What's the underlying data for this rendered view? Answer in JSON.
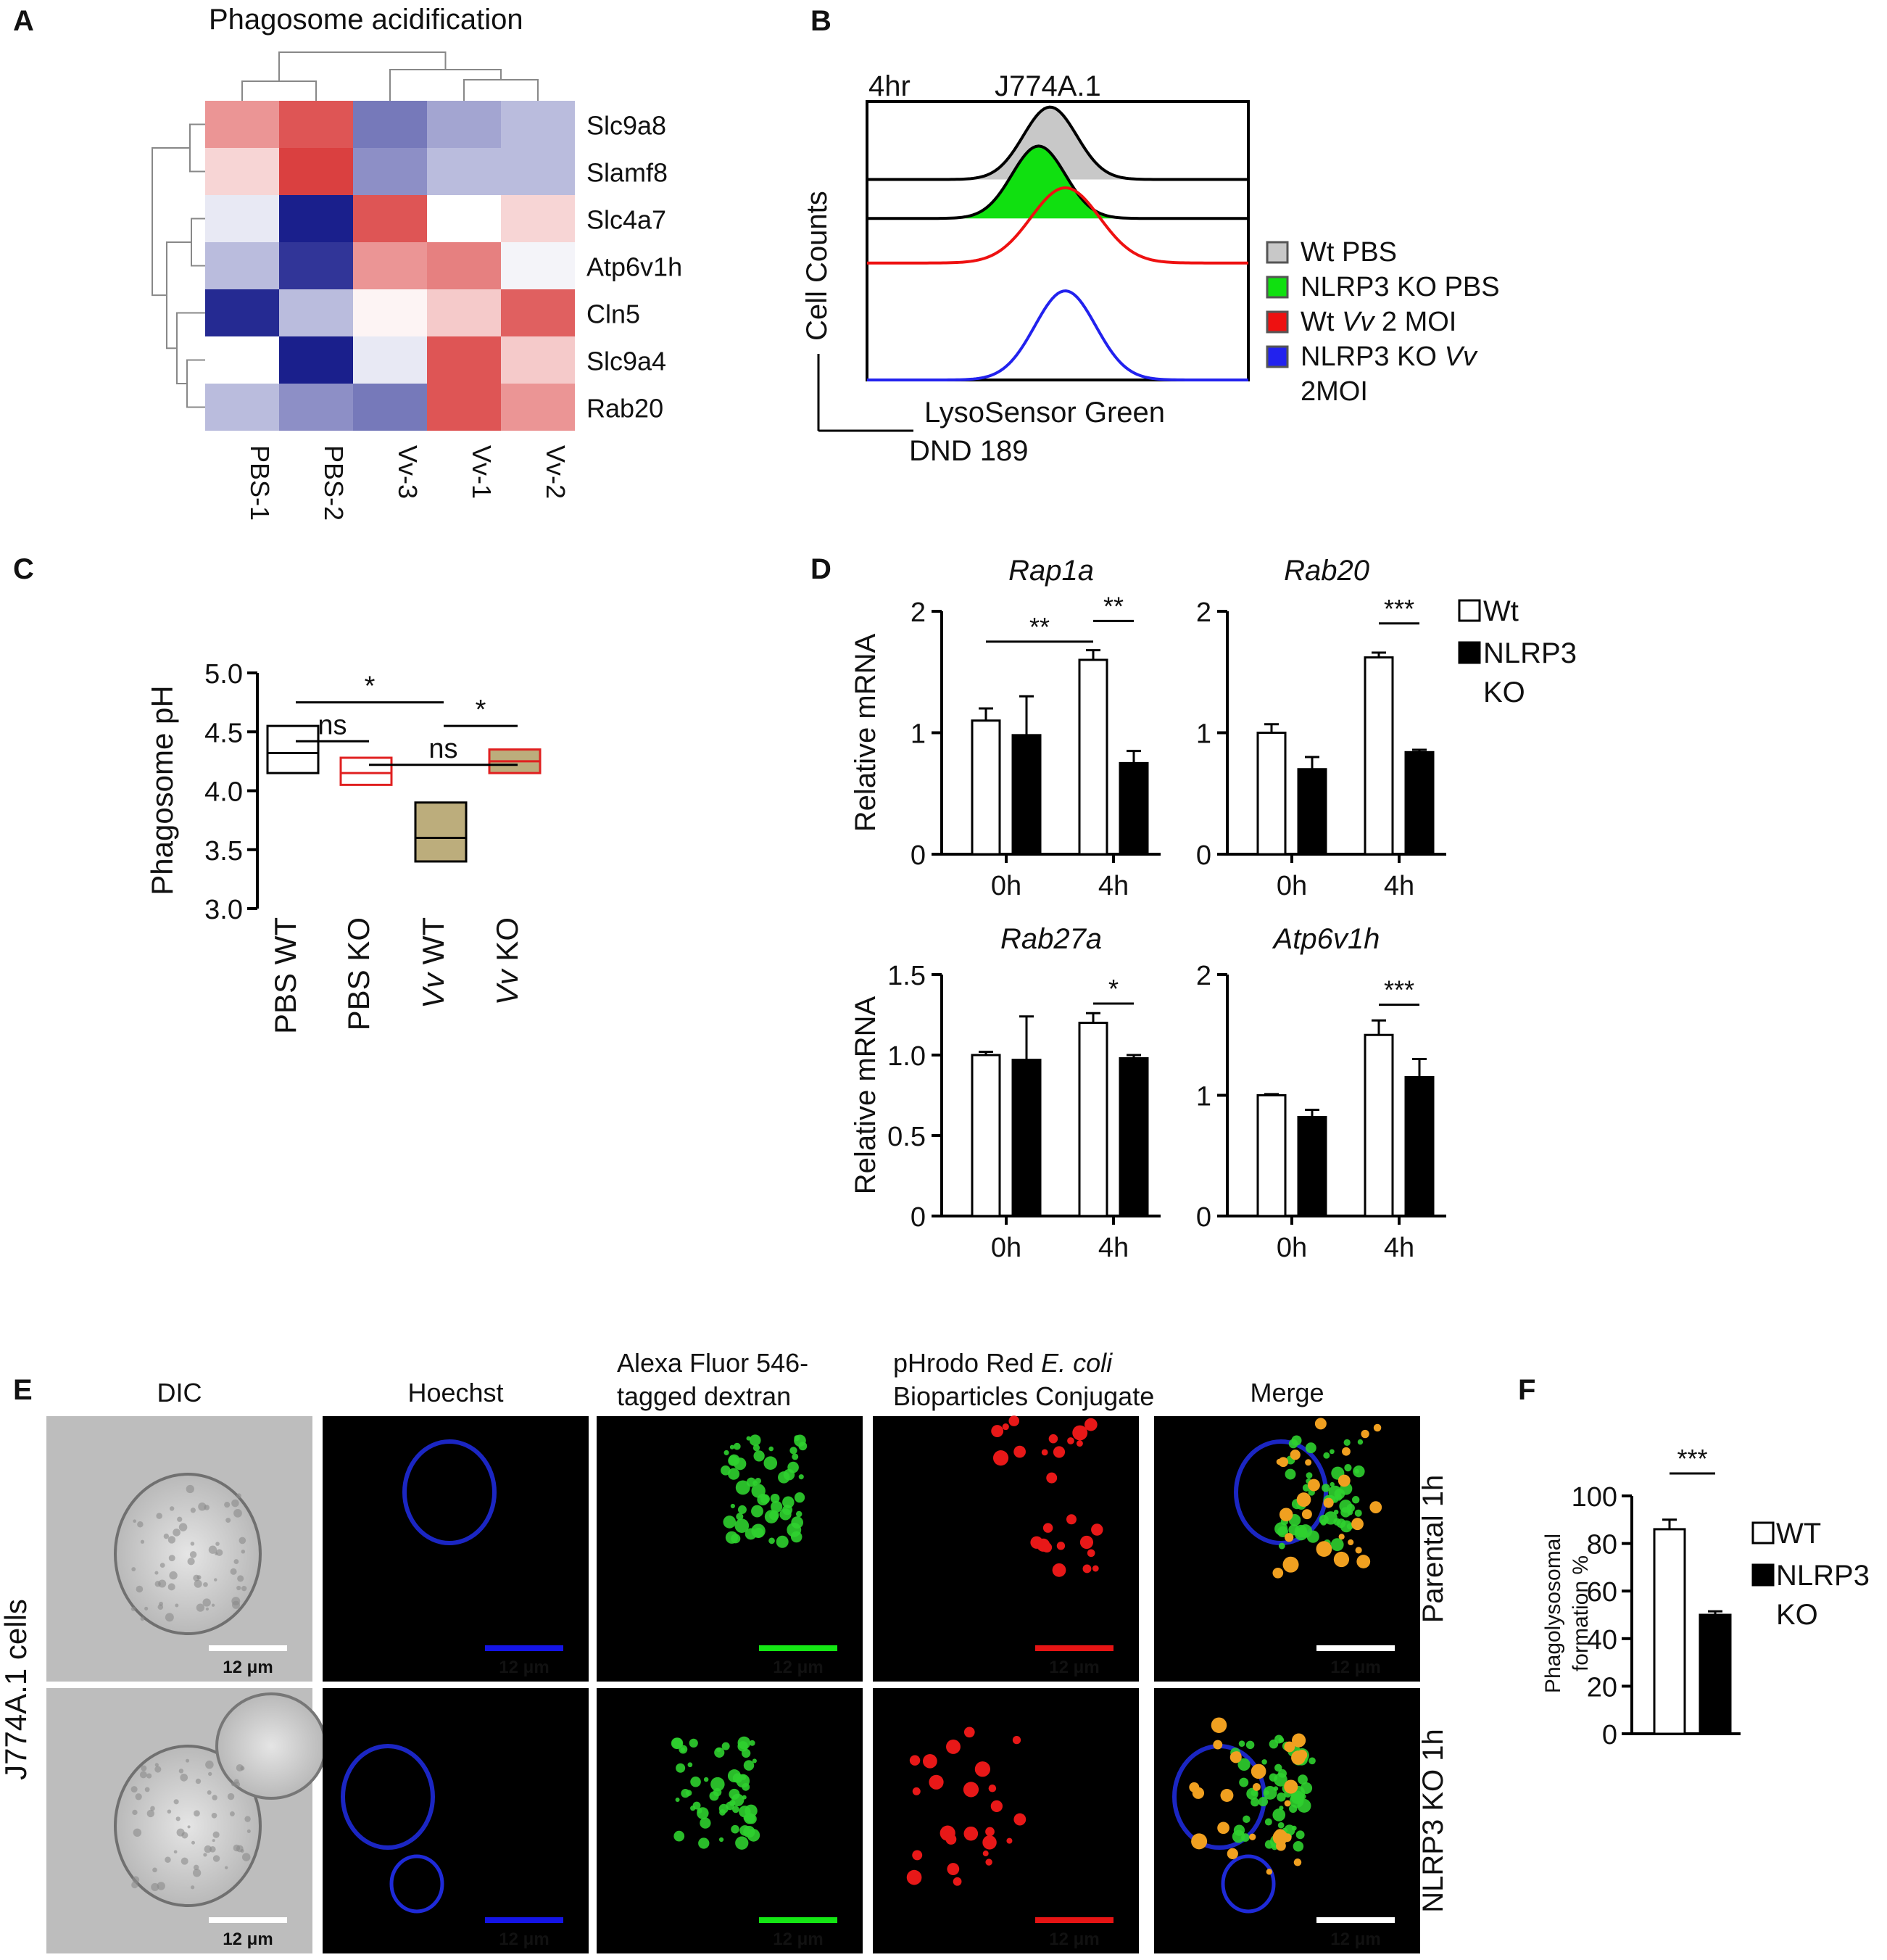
{
  "panels": {
    "A": {
      "letter": "A"
    },
    "B": {
      "letter": "B"
    },
    "C": {
      "letter": "C"
    },
    "D": {
      "letter": "D"
    },
    "E": {
      "letter": "E"
    },
    "F": {
      "letter": "F"
    }
  },
  "chart_data": [
    {
      "id": "A",
      "type": "heatmap",
      "title": "Phagosome acidification",
      "columns": [
        "PBS-1",
        "PBS-2",
        "Vv-3",
        "Vv-1",
        "Vv-2"
      ],
      "rows": [
        "Slc9a8",
        "Slamf8",
        "Slc4a7",
        "Atp6v1h",
        "Cln5",
        "Slc9a4",
        "Rab20"
      ],
      "values": [
        [
          0.5,
          0.8,
          -0.6,
          -0.4,
          -0.3
        ],
        [
          0.2,
          0.9,
          -0.5,
          -0.3,
          -0.3
        ],
        [
          -0.1,
          -1.0,
          0.8,
          0.0,
          0.2
        ],
        [
          -0.3,
          -0.9,
          0.5,
          0.6,
          -0.05
        ],
        [
          -0.95,
          -0.3,
          0.05,
          0.25,
          0.75
        ],
        [
          0.0,
          -1.0,
          -0.1,
          0.8,
          0.25
        ],
        [
          -0.3,
          -0.5,
          -0.6,
          0.8,
          0.5
        ]
      ],
      "colors": {
        "low": "#1a1f8c",
        "mid": "#ffffff",
        "high": "#d62b2b"
      }
    },
    {
      "id": "B",
      "type": "line",
      "title_left": "4hr",
      "title_right": "J774A.1",
      "ylabel": "Cell Counts",
      "xlabel_line1": "LysoSensor Green",
      "xlabel_line2": "DND 189",
      "legend_position": "right",
      "series": [
        {
          "name": "Wt PBS",
          "color": "#000000",
          "fill": "#c8c8c8",
          "offset": 0.72,
          "center": 0.48,
          "width": 0.07,
          "height": 0.26
        },
        {
          "name": "NLRP3 KO PBS",
          "color": "#000000",
          "fill": "#10e010",
          "offset": 0.58,
          "center": 0.45,
          "width": 0.07,
          "height": 0.26
        },
        {
          "name": "Wt Vv 2 MOI",
          "color": "#ee1111",
          "fill": "none",
          "offset": 0.42,
          "center": 0.52,
          "width": 0.09,
          "height": 0.27
        },
        {
          "name": "NLRP3 KO Vv 2MOI",
          "color": "#2222ee",
          "fill": "none",
          "offset": 0.0,
          "center": 0.52,
          "width": 0.08,
          "height": 0.32
        }
      ],
      "legend": [
        {
          "parts": [
            {
              "t": "Wt PBS",
              "i": false
            }
          ]
        },
        {
          "parts": [
            {
              "t": "NLRP3 KO PBS",
              "i": false
            }
          ]
        },
        {
          "parts": [
            {
              "t": "Wt ",
              "i": false
            },
            {
              "t": "Vv",
              "i": true
            },
            {
              "t": " 2 MOI",
              "i": false
            }
          ]
        },
        {
          "parts": [
            {
              "t": "NLRP3 KO ",
              "i": false
            },
            {
              "t": "Vv",
              "i": true
            }
          ]
        },
        {
          "parts": [
            {
              "t": "2MOI",
              "i": false
            }
          ],
          "swatch": false
        }
      ]
    },
    {
      "id": "C",
      "type": "box",
      "ylabel": "Phagosome pH",
      "ylim": [
        3.0,
        5.0
      ],
      "yticks": [
        "3.0",
        "3.5",
        "4.0",
        "4.5",
        "5.0"
      ],
      "categories": [
        {
          "parts": [
            {
              "t": "PBS WT",
              "i": false
            }
          ]
        },
        {
          "parts": [
            {
              "t": "PBS KO",
              "i": false
            }
          ]
        },
        {
          "parts": [
            {
              "t": "Vv",
              "i": true
            },
            {
              "t": " WT",
              "i": false
            }
          ]
        },
        {
          "parts": [
            {
              "t": "Vv",
              "i": true
            },
            {
              "t": " KO",
              "i": false
            }
          ]
        }
      ],
      "boxes": [
        {
          "low": 4.15,
          "mid": 4.32,
          "high": 4.55,
          "stroke": "#000000",
          "fill": "none"
        },
        {
          "low": 4.05,
          "mid": 4.15,
          "high": 4.28,
          "stroke": "#e02020",
          "fill": "none"
        },
        {
          "low": 3.4,
          "mid": 3.6,
          "high": 3.9,
          "stroke": "#000000",
          "fill": "#bcad7c"
        },
        {
          "low": 4.15,
          "mid": 4.25,
          "high": 4.35,
          "stroke": "#e02020",
          "fill": "#bcad7c"
        }
      ],
      "significance": [
        {
          "from": 0,
          "to": 2,
          "y": 4.75,
          "label": "*"
        },
        {
          "from": 0,
          "to": 1,
          "y": 4.42,
          "label": "ns"
        },
        {
          "from": 2,
          "to": 3,
          "y": 4.55,
          "label": "*"
        },
        {
          "from": 1,
          "to": 3,
          "y": 4.22,
          "label": "ns"
        }
      ]
    },
    {
      "id": "D",
      "type": "bar",
      "ylabel": "Relative mRNA",
      "categories": [
        "0h",
        "4h"
      ],
      "legend": [
        "Wt",
        "NLRP3",
        "KO"
      ],
      "subplots": [
        {
          "title": "Rap1a",
          "ylim": [
            0,
            2
          ],
          "yticks": [
            "0",
            "1",
            "2"
          ],
          "wt": [
            1.1,
            1.6
          ],
          "wt_err": [
            0.1,
            0.08
          ],
          "ko": [
            0.98,
            0.75
          ],
          "ko_err": [
            0.32,
            0.1
          ],
          "sig": [
            {
              "x1": "wt0",
              "x2": "wt4",
              "y": 1.75,
              "label": "**"
            },
            {
              "x1": "wt4",
              "x2": "ko4",
              "y": 1.92,
              "label": "**"
            }
          ]
        },
        {
          "title": "Rab20",
          "ylim": [
            0,
            2
          ],
          "yticks": [
            "0",
            "1",
            "2"
          ],
          "wt": [
            1.0,
            1.62
          ],
          "wt_err": [
            0.07,
            0.04
          ],
          "ko": [
            0.7,
            0.84
          ],
          "ko_err": [
            0.1,
            0.02
          ],
          "ylabel": false,
          "sig": [
            {
              "x1": "wt4",
              "x2": "ko4",
              "y": 1.9,
              "label": "***"
            }
          ]
        },
        {
          "title": "Rab27a",
          "ylim": [
            0,
            1.5
          ],
          "yticks": [
            "0",
            "0.5",
            "1.0",
            "1.5"
          ],
          "wt": [
            1.0,
            1.2
          ],
          "wt_err": [
            0.02,
            0.06
          ],
          "ko": [
            0.97,
            0.98
          ],
          "ko_err": [
            0.27,
            0.02
          ],
          "sig": [
            {
              "x1": "wt4",
              "x2": "ko4",
              "y": 1.32,
              "label": "*"
            }
          ]
        },
        {
          "title": "Atp6v1h",
          "ylim": [
            0,
            2
          ],
          "yticks": [
            "0",
            "1",
            "2"
          ],
          "wt": [
            1.0,
            1.5
          ],
          "wt_err": [
            0.01,
            0.12
          ],
          "ko": [
            0.82,
            1.15
          ],
          "ko_err": [
            0.06,
            0.15
          ],
          "ylabel": false,
          "sig": [
            {
              "x1": "wt4",
              "x2": "ko4",
              "y": 1.75,
              "label": "***"
            }
          ]
        }
      ]
    },
    {
      "id": "E",
      "type": "image-grid",
      "column_headers": [
        {
          "parts": [
            {
              "t": "DIC",
              "i": false
            }
          ],
          "color": "#111111"
        },
        {
          "parts": [
            {
              "t": "Hoechst",
              "i": false
            }
          ],
          "color": "#1010e0"
        },
        {
          "line1": [
            {
              "t": "Alexa   Fluor   546-",
              "i": false
            }
          ],
          "line2": [
            {
              "t": "tagged dextran",
              "i": false
            }
          ],
          "color": "#11bb11"
        },
        {
          "line1": [
            {
              "t": "pHrodo Red ",
              "i": false
            },
            {
              "t": "E. coli",
              "i": true
            }
          ],
          "line2": [
            {
              "t": "Bioparticles Conjugate",
              "i": false
            }
          ],
          "color": "#ee1111"
        },
        {
          "parts": [
            {
              "t": "Merge",
              "i": false
            }
          ],
          "color": "#111111"
        }
      ],
      "row_labels": [
        "Parental 1h",
        "NLRP3 KO 1h"
      ],
      "side_label": "J774A.1 cells",
      "scale_bar": "12 μm",
      "scale_bar_colors": [
        "#ffffff",
        "#1414e6",
        "#14e614",
        "#e61414",
        "#ffffff"
      ]
    },
    {
      "id": "F",
      "type": "bar",
      "ylabel_line1": "Phagolysosomal",
      "ylabel_line2": "formation %",
      "ylim": [
        0,
        100
      ],
      "yticks": [
        "0",
        "20",
        "40",
        "60",
        "80",
        "100"
      ],
      "categories": [
        "WT",
        "NLRP3 KO"
      ],
      "values": [
        86,
        50
      ],
      "errors": [
        4,
        1.5
      ],
      "significance": "***",
      "legend": [
        "WT",
        "NLRP3",
        "KO"
      ]
    }
  ]
}
